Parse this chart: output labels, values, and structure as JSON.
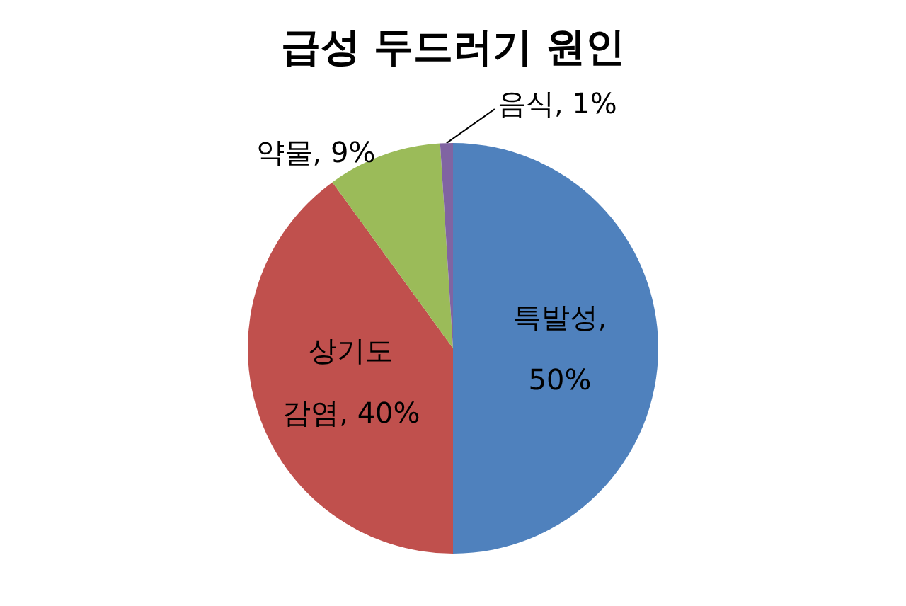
{
  "chart_data": {
    "type": "pie",
    "title": "급성 두드러기 원인",
    "categories": [
      null,
      null,
      null,
      null
    ],
    "values": [
      50,
      40,
      9,
      1
    ],
    "colors": [
      "#4f81bd",
      "#c0504d",
      "#9bbb59",
      "#8064a2"
    ],
    "value_labels": [
      "특발성, 50%",
      "상기도 감염, 40%",
      "약물, 9%",
      "음식, 1%"
    ]
  }
}
